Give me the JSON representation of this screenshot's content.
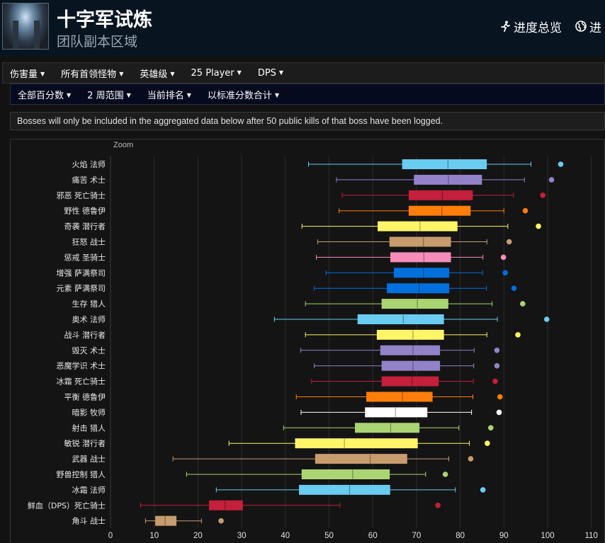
{
  "header": {
    "title": "十字军试炼",
    "subtitle": "团队副本区域",
    "links": [
      {
        "icon": "runner-icon",
        "label": "进度总览"
      },
      {
        "icon": "globe-icon",
        "label": "进"
      }
    ]
  },
  "filters_primary": [
    "伤害量",
    "所有首领怪物",
    "英雄级",
    "25 Player",
    "DPS"
  ],
  "filters_secondary": [
    "全部百分数",
    "2 周范围",
    "当前排名",
    "以标准分数合计"
  ],
  "notice": "Bosses will only be included in the aggregated data below after 50 public kills of that boss have been logged.",
  "chart_data": {
    "type": "boxplot",
    "orientation": "horizontal",
    "zoom_label": "Zoom",
    "xlim": [
      0,
      110
    ],
    "xticks": [
      0,
      10,
      20,
      30,
      40,
      50,
      60,
      70,
      80,
      90,
      100,
      110
    ],
    "series": [
      {
        "name": "火焰 法师",
        "color": "#69ccf0",
        "min": 45.3,
        "q1": 66.8,
        "median": 77.2,
        "q3": 86.0,
        "max": 96.2,
        "outlier": 103.0
      },
      {
        "name": "痛苦 术士",
        "color": "#9482c9",
        "min": 51.7,
        "q1": 69.5,
        "median": 77.3,
        "q3": 84.9,
        "max": 94.7,
        "outlier": 100.9
      },
      {
        "name": "邪恶 死亡骑士",
        "color": "#c41f3b",
        "min": 53.0,
        "q1": 68.3,
        "median": 75.9,
        "q3": 82.8,
        "max": 92.2,
        "outlier": 98.9
      },
      {
        "name": "野性 德鲁伊",
        "color": "#ff7d0a",
        "min": 52.3,
        "q1": 68.3,
        "median": 75.8,
        "q3": 82.3,
        "max": 90.0,
        "outlier": 94.9
      },
      {
        "name": "奇袭 潜行者",
        "color": "#fff569",
        "min": 43.8,
        "q1": 61.2,
        "median": 70.8,
        "q3": 79.3,
        "max": 90.9,
        "outlier": 97.9
      },
      {
        "name": "狂怒 战士",
        "color": "#c79c6e",
        "min": 47.4,
        "q1": 63.9,
        "median": 71.6,
        "q3": 77.8,
        "max": 86.1,
        "outlier": 91.2
      },
      {
        "name": "惩戒 圣骑士",
        "color": "#f58cba",
        "min": 47.1,
        "q1": 64.1,
        "median": 71.7,
        "q3": 77.8,
        "max": 85.2,
        "outlier": 89.9
      },
      {
        "name": "增强 萨满祭司",
        "color": "#0070de",
        "min": 49.3,
        "q1": 64.9,
        "median": 71.6,
        "q3": 77.4,
        "max": 85.1,
        "outlier": 90.3
      },
      {
        "name": "元素 萨满祭司",
        "color": "#0070de",
        "min": 46.6,
        "q1": 63.3,
        "median": 70.6,
        "q3": 77.4,
        "max": 86.0,
        "outlier": 92.3
      },
      {
        "name": "生存 猎人",
        "color": "#abd473",
        "min": 44.6,
        "q1": 62.1,
        "median": 70.2,
        "q3": 77.2,
        "max": 87.3,
        "outlier": 94.3
      },
      {
        "name": "奥术 法师",
        "color": "#69ccf0",
        "min": 37.5,
        "q1": 56.6,
        "median": 67.0,
        "q3": 76.2,
        "max": 88.5,
        "outlier": 99.8
      },
      {
        "name": "战斗 潜行者",
        "color": "#fff569",
        "min": 44.6,
        "q1": 61.0,
        "median": 69.2,
        "q3": 76.2,
        "max": 86.1,
        "outlier": 93.2
      },
      {
        "name": "毁灭 术士",
        "color": "#9482c9",
        "min": 43.5,
        "q1": 61.8,
        "median": 69.2,
        "q3": 75.3,
        "max": 83.2,
        "outlier": 88.4
      },
      {
        "name": "恶魔学识 术士",
        "color": "#9482c9",
        "min": 46.6,
        "q1": 62.1,
        "median": 69.2,
        "q3": 75.3,
        "max": 83.1,
        "outlier": 88.4
      },
      {
        "name": "冰霜 死亡骑士",
        "color": "#c41f3b",
        "min": 46.0,
        "q1": 62.1,
        "median": 69.0,
        "q3": 75.0,
        "max": 83.0,
        "outlier": 88.0
      },
      {
        "name": "平衡 德鲁伊",
        "color": "#ff7d0a",
        "min": 42.5,
        "q1": 58.6,
        "median": 66.8,
        "q3": 73.6,
        "max": 82.9,
        "outlier": 89.1
      },
      {
        "name": "暗影 牧师",
        "color": "#ffffff",
        "min": 43.6,
        "q1": 58.3,
        "median": 65.2,
        "q3": 72.4,
        "max": 82.6,
        "outlier": 88.9
      },
      {
        "name": "射击 猎人",
        "color": "#abd473",
        "min": 39.6,
        "q1": 56.0,
        "median": 64.1,
        "q3": 70.6,
        "max": 79.7,
        "outlier": 87.0
      },
      {
        "name": "敏锐 潜行者",
        "color": "#fff569",
        "min": 27.1,
        "q1": 42.3,
        "median": 53.5,
        "q3": 70.2,
        "max": 82.1,
        "outlier": 86.2
      },
      {
        "name": "武器 战士",
        "color": "#c79c6e",
        "min": 14.3,
        "q1": 46.9,
        "median": 59.4,
        "q3": 67.8,
        "max": 77.4,
        "outlier": 82.4
      },
      {
        "name": "野兽控制 猎人",
        "color": "#abd473",
        "min": 17.4,
        "q1": 43.8,
        "median": 55.4,
        "q3": 63.8,
        "max": 72.1,
        "outlier": 76.6
      },
      {
        "name": "冰霜 法师",
        "color": "#69ccf0",
        "min": 24.2,
        "q1": 43.2,
        "median": 54.7,
        "q3": 63.9,
        "max": 78.9,
        "outlier": 85.2
      },
      {
        "name": "鲜血（DPS）死亡骑士",
        "color": "#c41f3b",
        "min": 6.9,
        "q1": 22.6,
        "median": 26.2,
        "q3": 30.2,
        "max": 52.5,
        "outlier": 74.9
      },
      {
        "name": "角斗 战士",
        "color": "#c79c6e",
        "min": 8.0,
        "q1": 10.3,
        "median": 12.5,
        "q3": 15.0,
        "max": 20.8,
        "outlier": 25.3
      }
    ]
  }
}
